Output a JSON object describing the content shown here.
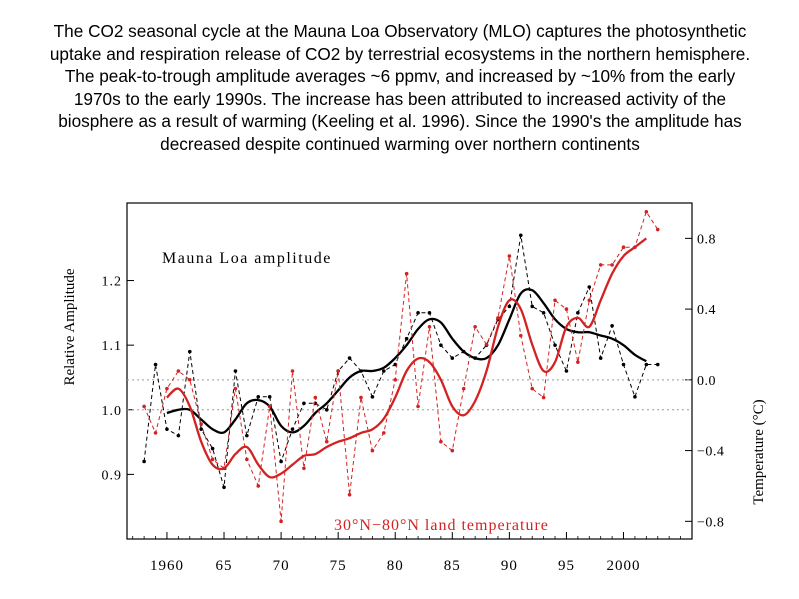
{
  "caption": "The CO2 seasonal cycle at the Mauna Loa Observatory (MLO) captures the photosynthetic uptake and respiration release of CO2 by terrestrial ecosystems in the northern hemisphere. The peak-to-trough amplitude averages ~6 ppmv, and increased by ~10% from the early 1970s to the early 1990s. The increase has been attributed to increased activity of the biosphere as a result of warming (Keeling et al. 1996). Since the 1990's the amplitude has decreased despite continued warming over northern continents",
  "chart_data": {
    "type": "line",
    "xlim": [
      1956.5,
      2006
    ],
    "x_ticks": [
      "1960",
      "65",
      "70",
      "75",
      "80",
      "85",
      "90",
      "95",
      "2000"
    ],
    "x_tick_values": [
      1960,
      1965,
      1970,
      1975,
      1980,
      1985,
      1990,
      1995,
      2000
    ],
    "left_axis": {
      "label": "Relative Amplitude",
      "ylim": [
        0.8,
        1.32
      ],
      "ticks": [
        "0.9",
        "1.0",
        "1.1",
        "1.2"
      ],
      "tick_values": [
        0.9,
        1.0,
        1.1,
        1.2
      ]
    },
    "right_axis": {
      "label": "Temperature (°C)",
      "ylim": [
        -0.9,
        1.0
      ],
      "ticks": [
        "0.8",
        "0.4",
        "0.0",
        "−0.4",
        "−0.8"
      ],
      "tick_values": [
        0.8,
        0.4,
        0.0,
        -0.4,
        -0.8
      ]
    },
    "grid": "horizontal dashed at 1.0 (left) and 0.0 (right)",
    "amplitude": {
      "label": "Mauna Loa amplitude",
      "color": "#000000",
      "annual": {
        "x": [
          1958,
          1959,
          1960,
          1961,
          1962,
          1963,
          1964,
          1965,
          1966,
          1967,
          1968,
          1969,
          1970,
          1971,
          1972,
          1973,
          1974,
          1975,
          1976,
          1977,
          1978,
          1979,
          1980,
          1981,
          1982,
          1983,
          1984,
          1985,
          1986,
          1987,
          1988,
          1989,
          1990,
          1991,
          1992,
          1993,
          1994,
          1995,
          1996,
          1997,
          1998,
          1999,
          2000,
          2001,
          2002,
          2003
        ],
        "values": [
          0.92,
          1.07,
          0.97,
          0.96,
          1.09,
          0.97,
          0.94,
          0.88,
          1.06,
          0.96,
          1.02,
          1.02,
          0.92,
          0.97,
          1.01,
          1.01,
          1.0,
          1.06,
          1.08,
          1.06,
          1.02,
          1.06,
          1.07,
          1.11,
          1.15,
          1.15,
          1.1,
          1.08,
          1.09,
          1.08,
          1.1,
          1.14,
          1.16,
          1.27,
          1.16,
          1.15,
          1.1,
          1.06,
          1.15,
          1.19,
          1.08,
          1.13,
          1.07,
          1.02,
          1.07,
          1.07
        ]
      },
      "smoothed": {
        "x": [
          1960,
          1961,
          1962,
          1963,
          1964,
          1965,
          1966,
          1967,
          1968,
          1969,
          1970,
          1971,
          1972,
          1973,
          1974,
          1975,
          1976,
          1977,
          1978,
          1979,
          1980,
          1981,
          1982,
          1983,
          1984,
          1985,
          1986,
          1987,
          1988,
          1989,
          1990,
          1991,
          1992,
          1993,
          1994,
          1995,
          1996,
          1997,
          1998,
          1999,
          2000,
          2001,
          2002
        ],
        "values": [
          0.995,
          1.0,
          1.0,
          0.985,
          0.97,
          0.965,
          0.985,
          1.01,
          1.015,
          1.005,
          0.975,
          0.965,
          0.975,
          0.995,
          1.01,
          1.03,
          1.05,
          1.06,
          1.06,
          1.065,
          1.08,
          1.1,
          1.125,
          1.14,
          1.135,
          1.11,
          1.09,
          1.08,
          1.08,
          1.1,
          1.14,
          1.18,
          1.185,
          1.165,
          1.14,
          1.125,
          1.12,
          1.12,
          1.115,
          1.11,
          1.1,
          1.085,
          1.075
        ]
      }
    },
    "temperature": {
      "label": "30°N−80°N land temperature",
      "color": "#d32222",
      "annual": {
        "x": [
          1958,
          1959,
          1960,
          1961,
          1962,
          1963,
          1964,
          1965,
          1966,
          1967,
          1968,
          1969,
          1970,
          1971,
          1972,
          1973,
          1974,
          1975,
          1976,
          1977,
          1978,
          1979,
          1980,
          1981,
          1982,
          1983,
          1984,
          1985,
          1986,
          1987,
          1988,
          1989,
          1990,
          1991,
          1992,
          1993,
          1994,
          1995,
          1996,
          1997,
          1998,
          1999,
          2000,
          2001,
          2002,
          2003
        ],
        "values": [
          -0.15,
          -0.3,
          -0.05,
          0.05,
          0.0,
          -0.25,
          -0.45,
          -0.5,
          -0.05,
          -0.45,
          -0.6,
          -0.15,
          -0.8,
          0.05,
          -0.5,
          -0.1,
          -0.35,
          0.05,
          -0.65,
          -0.1,
          -0.4,
          -0.3,
          0.0,
          0.6,
          -0.15,
          0.3,
          -0.35,
          -0.4,
          -0.05,
          0.3,
          0.2,
          0.35,
          0.7,
          0.25,
          -0.05,
          -0.1,
          0.45,
          0.4,
          0.1,
          0.45,
          0.65,
          0.65,
          0.75,
          0.75,
          0.95,
          0.85
        ]
      },
      "smoothed": {
        "x": [
          1960,
          1961,
          1962,
          1963,
          1964,
          1965,
          1966,
          1967,
          1968,
          1969,
          1970,
          1971,
          1972,
          1973,
          1974,
          1975,
          1976,
          1977,
          1978,
          1979,
          1980,
          1981,
          1982,
          1983,
          1984,
          1985,
          1986,
          1987,
          1988,
          1989,
          1990,
          1991,
          1992,
          1993,
          1994,
          1995,
          1996,
          1997,
          1998,
          1999,
          2000,
          2001,
          2002
        ],
        "values": [
          -0.1,
          -0.05,
          -0.15,
          -0.35,
          -0.48,
          -0.5,
          -0.42,
          -0.38,
          -0.48,
          -0.55,
          -0.53,
          -0.48,
          -0.43,
          -0.42,
          -0.38,
          -0.35,
          -0.33,
          -0.3,
          -0.28,
          -0.22,
          -0.1,
          0.05,
          0.12,
          0.1,
          0.0,
          -0.15,
          -0.2,
          -0.12,
          0.05,
          0.3,
          0.45,
          0.4,
          0.2,
          0.05,
          0.1,
          0.3,
          0.35,
          0.3,
          0.45,
          0.6,
          0.7,
          0.75,
          0.8
        ]
      }
    }
  }
}
